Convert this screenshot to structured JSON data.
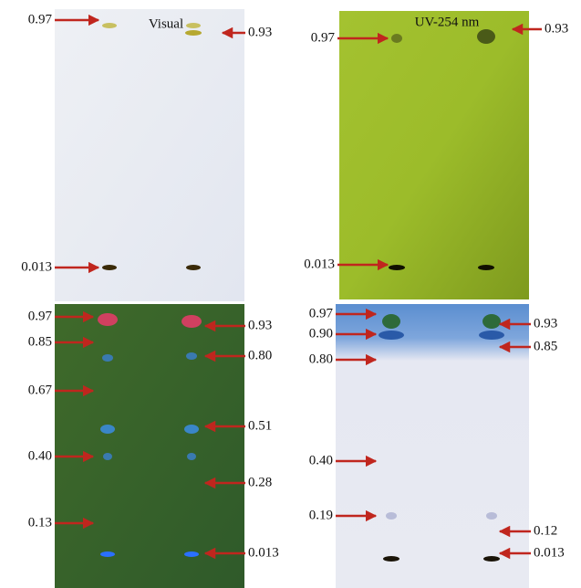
{
  "panels": [
    {
      "title": "Visual",
      "left_labels": [
        "0.97",
        "0.013"
      ],
      "right_labels": [
        "0.93"
      ]
    },
    {
      "title": "UV-254 nm",
      "left_labels": [
        "0.97",
        "0.013"
      ],
      "right_labels": [
        "0.93"
      ]
    },
    {
      "left_labels": [
        "0.97",
        "0.85",
        "0.67",
        "0.40",
        "0.13"
      ],
      "right_labels": [
        "0.93",
        "0.80",
        "0.51",
        "0.28",
        "0.013"
      ]
    },
    {
      "left_labels": [
        "0.97",
        "0.90",
        "0.80",
        "0.40",
        "0.19"
      ],
      "right_labels": [
        "0.93",
        "0.85",
        "0.12",
        "0.013"
      ]
    }
  ]
}
